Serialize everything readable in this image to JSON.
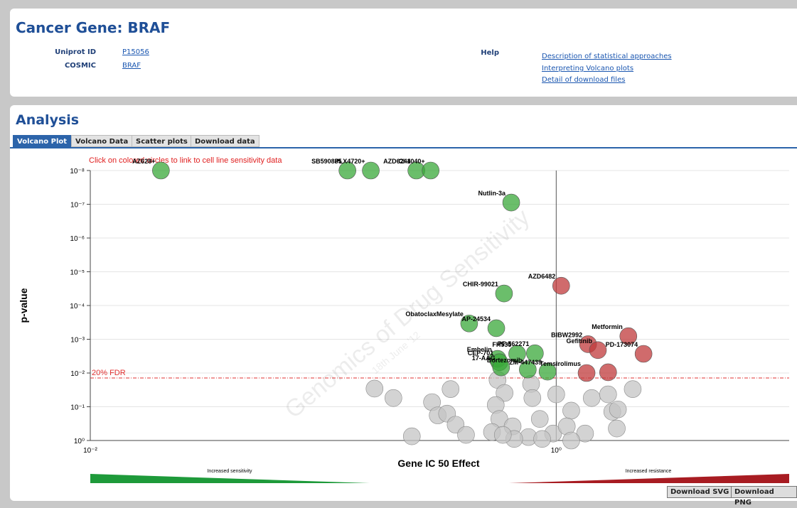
{
  "header": {
    "title": "Cancer Gene: BRAF",
    "fields": [
      {
        "label": "Uniprot ID",
        "value": "P15056"
      },
      {
        "label": "COSMIC",
        "value": "BRAF"
      }
    ],
    "help_label": "Help",
    "help_links": [
      "Description of statistical approaches",
      "Interpreting Volcano plots",
      "Detail of download files"
    ]
  },
  "analysis": {
    "title": "Analysis",
    "tabs": [
      "Volcano Plot",
      "Volcano Data",
      "Scatter plots",
      "Download data"
    ],
    "buttons": [
      "Download SVG",
      "Download PNG"
    ]
  },
  "chart_data": {
    "type": "scatter",
    "annotation": "Click on colored circles to link to cell line sensitivity data",
    "xlabel": "Gene IC 50 Effect",
    "ylabel": "p-value",
    "xscale": "log",
    "yscale": "log",
    "xlim": [
      0.01,
      10
    ],
    "ylim": [
      1,
      1e-08
    ],
    "xticks": [
      {
        "value": 0.01,
        "label": "10⁻²"
      },
      {
        "value": 1,
        "label": "10⁰"
      }
    ],
    "yticks": [
      {
        "value": 1,
        "label": "10⁰"
      },
      {
        "value": 0.1,
        "label": "10⁻¹"
      },
      {
        "value": 0.01,
        "label": "10⁻²"
      },
      {
        "value": 0.001,
        "label": "10⁻³"
      },
      {
        "value": 0.0001,
        "label": "10⁻⁴"
      },
      {
        "value": 1e-05,
        "label": "10⁻⁵"
      },
      {
        "value": 1e-06,
        "label": "10⁻⁶"
      },
      {
        "value": 1e-07,
        "label": "10⁻⁷"
      },
      {
        "value": 1e-08,
        "label": "10⁻⁸"
      }
    ],
    "grid": true,
    "threshold": {
      "label": "20% FDR",
      "value": 0.014,
      "color": "#e03030"
    },
    "watermark": [
      "Genomics of Drug Sensitivity",
      "18th June '12"
    ],
    "scale_labels": [
      "Increased sensitivity",
      "Increased resistance"
    ],
    "series": [
      {
        "color": "#3aa83a",
        "x": [
          0.0201,
          0.127,
          0.16,
          0.251,
          0.289,
          0.641,
          0.597,
          0.423,
          0.553,
          0.68,
          0.81,
          0.56,
          0.57,
          0.58,
          0.755,
          0.918
        ],
        "values": [
          1e-08,
          1e-08,
          1e-08,
          1e-08,
          1e-08,
          8.9e-08,
          4.4e-05,
          0.00034,
          0.00047,
          0.0027,
          0.0026,
          0.0038,
          0.0048,
          0.0068,
          0.0079,
          0.0091
        ],
        "labels": [
          "AZ628+",
          "SB590885",
          "PLX4720+",
          "AZD6244",
          "CI-1040+",
          "Nutlin-3a",
          "CHIR-99021",
          "ObatoclaxMesylate",
          "AP-24534",
          "FH535",
          "PF-562271",
          "Embelin",
          "CEP-701",
          "17-AAG",
          "Bortezomib",
          "ZM-447439"
        ]
      },
      {
        "color": "#c0393b",
        "x": [
          1.05,
          1.37,
          2.04,
          1.51,
          2.37,
          1.35,
          1.67
        ],
        "values": [
          2.6e-05,
          0.0014,
          0.00081,
          0.0021,
          0.0027,
          0.01,
          0.0095
        ],
        "labels": [
          "AZD6482",
          "BIBW2992",
          "Metformin",
          "Gefitinib",
          "PD-173074",
          "Temsirolimus",
          null
        ]
      },
      {
        "color": "#c4c4c4",
        "x": [
          0.166,
          0.2,
          0.293,
          0.352,
          0.31,
          0.34,
          0.37,
          0.41,
          0.24,
          0.56,
          0.6,
          0.55,
          0.57,
          0.53,
          0.65,
          0.78,
          0.79,
          0.85,
          1.0,
          0.97,
          1.16,
          1.11,
          1.33,
          1.42,
          1.67,
          1.74,
          1.84,
          2.13,
          1.82,
          0.76,
          0.87,
          0.66,
          1.16,
          0.59
        ],
        "values": [
          0.029,
          0.055,
          0.073,
          0.03,
          0.18,
          0.16,
          0.34,
          0.68,
          0.75,
          0.016,
          0.039,
          0.089,
          0.23,
          0.56,
          0.38,
          0.021,
          0.055,
          0.23,
          0.043,
          0.62,
          0.13,
          0.38,
          0.62,
          0.055,
          0.043,
          0.14,
          0.12,
          0.03,
          0.44,
          0.79,
          0.9,
          0.9,
          1.0,
          0.68
        ]
      }
    ]
  }
}
